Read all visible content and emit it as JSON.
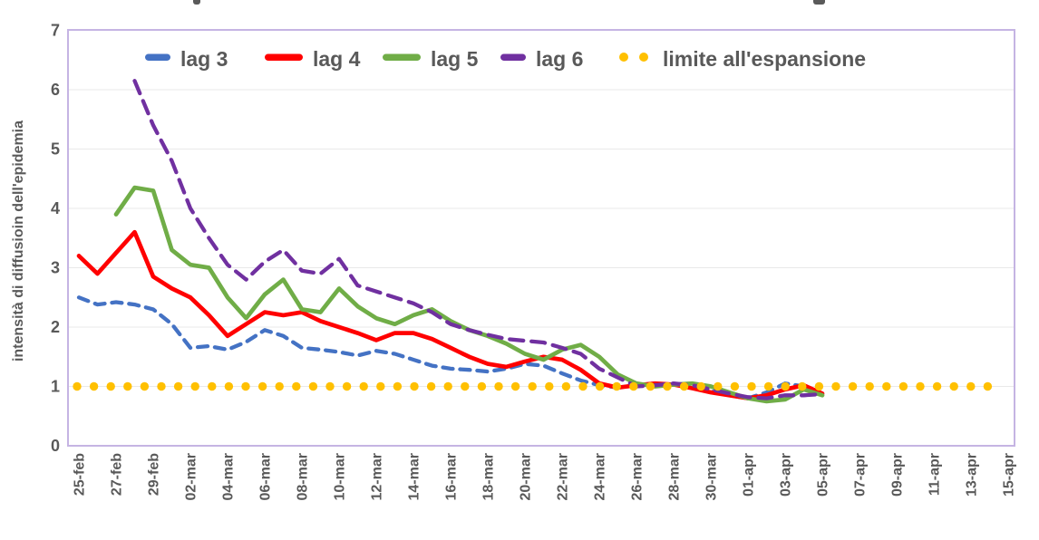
{
  "axis_text_color": "#595959",
  "plot": {
    "border_color": "#C5B4E3",
    "gridline_color": "#E9E9E9",
    "background": "#ffffff"
  },
  "chart_data": {
    "type": "line",
    "title": "",
    "xlabel": "",
    "ylabel": "intensità di diffusioin dell'epidemia",
    "ylim": [
      0,
      7
    ],
    "yticks": [
      0,
      1,
      2,
      3,
      4,
      5,
      6,
      7
    ],
    "grid": "horizontal",
    "legend_position": "top-center-inside",
    "dates": [
      "25-feb",
      "26-feb",
      "27-feb",
      "28-feb",
      "29-feb",
      "01-mar",
      "02-mar",
      "03-mar",
      "04-mar",
      "05-mar",
      "06-mar",
      "07-mar",
      "08-mar",
      "09-mar",
      "10-mar",
      "11-mar",
      "12-mar",
      "13-mar",
      "14-mar",
      "15-mar",
      "16-mar",
      "17-mar",
      "18-mar",
      "19-mar",
      "20-mar",
      "21-mar",
      "22-mar",
      "23-mar",
      "24-mar",
      "25-mar",
      "26-mar",
      "27-mar",
      "28-mar",
      "29-mar",
      "30-mar",
      "31-mar",
      "01-apr",
      "02-apr",
      "03-apr",
      "04-apr",
      "05-apr"
    ],
    "axis_labels": [
      "25-feb",
      "27-feb",
      "29-feb",
      "02-mar",
      "04-mar",
      "06-mar",
      "08-mar",
      "10-mar",
      "12-mar",
      "14-mar",
      "16-mar",
      "18-mar",
      "20-mar",
      "22-mar",
      "24-mar",
      "26-mar",
      "28-mar",
      "30-mar",
      "01-apr",
      "03-apr",
      "05-apr",
      "07-apr",
      "09-apr",
      "11-apr",
      "13-apr",
      "15-apr"
    ],
    "series": [
      {
        "name": "lag 3",
        "color": "#4472C4",
        "style": "dashed",
        "values": [
          2.5,
          2.38,
          2.42,
          2.38,
          2.3,
          2.05,
          1.65,
          1.68,
          1.62,
          1.75,
          1.95,
          1.85,
          1.65,
          1.62,
          1.58,
          1.52,
          1.6,
          1.55,
          1.45,
          1.35,
          1.3,
          1.28,
          1.25,
          1.3,
          1.38,
          1.35,
          1.22,
          1.1,
          1.02,
          0.98,
          1.02,
          1.05,
          1.03,
          0.98,
          0.92,
          0.85,
          0.8,
          0.9,
          1.05,
          1.0,
          null
        ]
      },
      {
        "name": "lag 4",
        "color": "#FF0000",
        "style": "solid",
        "values": [
          3.2,
          2.9,
          3.25,
          3.6,
          2.85,
          2.65,
          2.5,
          2.2,
          1.85,
          2.05,
          2.25,
          2.2,
          2.25,
          2.1,
          2.0,
          1.9,
          1.78,
          1.9,
          1.9,
          1.8,
          1.65,
          1.5,
          1.38,
          1.33,
          1.42,
          1.5,
          1.45,
          1.28,
          1.05,
          0.98,
          1.02,
          1.05,
          1.03,
          0.97,
          0.9,
          0.85,
          0.8,
          0.85,
          0.95,
          1.02,
          0.88
        ]
      },
      {
        "name": "lag 5",
        "color": "#70AD47",
        "style": "solid",
        "values": [
          null,
          null,
          3.9,
          4.35,
          4.3,
          3.3,
          3.05,
          3.0,
          2.5,
          2.15,
          2.55,
          2.8,
          2.3,
          2.25,
          2.65,
          2.35,
          2.15,
          2.05,
          2.2,
          2.3,
          2.1,
          1.95,
          1.85,
          1.72,
          1.55,
          1.45,
          1.62,
          1.7,
          1.5,
          1.2,
          1.05,
          1.0,
          1.03,
          1.05,
          1.0,
          0.9,
          0.8,
          0.75,
          0.78,
          0.95,
          0.85
        ]
      },
      {
        "name": "lag 6",
        "color": "#7030A0",
        "style": "dashed",
        "values": [
          null,
          null,
          null,
          6.15,
          5.4,
          4.8,
          4.0,
          3.5,
          3.05,
          2.8,
          3.1,
          3.3,
          2.95,
          2.9,
          3.15,
          2.7,
          2.6,
          2.5,
          2.4,
          2.25,
          2.05,
          1.95,
          1.87,
          1.8,
          1.77,
          1.74,
          1.65,
          1.55,
          1.3,
          1.15,
          1.0,
          1.02,
          1.05,
          1.02,
          0.95,
          0.88,
          0.82,
          0.8,
          0.85,
          0.85,
          0.87
        ]
      },
      {
        "name": "limite all'espansione",
        "color": "#FFC000",
        "style": "dotted",
        "constant_value": 1.0,
        "spans_full_axis": true
      }
    ]
  }
}
